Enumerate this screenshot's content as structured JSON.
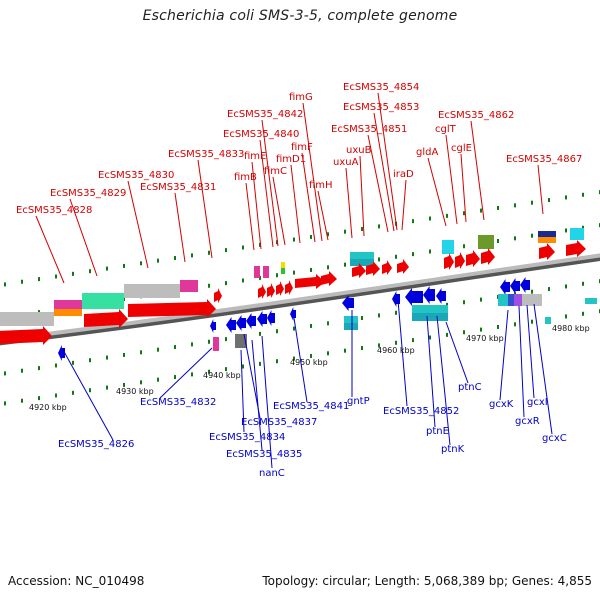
{
  "title": "Escherichia coli SMS-3-5, complete genome",
  "footer": {
    "accession": "Accession: NC_010498",
    "summary": "Topology: circular; Length: 5,068,389 bp; Genes: 4,855"
  },
  "colors": {
    "forward": "#ee0000",
    "reverse": "#0000dd",
    "top_label": "#d40000",
    "bottom_label": "#0000c8",
    "backbone": "#999999",
    "tick": "#117711"
  },
  "scale_labels": [
    "4920 kbp",
    "4930 kbp",
    "4940 kbp",
    "4950 kbp",
    "4960 kbp",
    "4970 kbp",
    "4980 kbp"
  ],
  "top_genes": [
    "EcSMS35_4828",
    "EcSMS35_4829",
    "EcSMS35_4830",
    "EcSMS35_4831",
    "EcSMS35_4833",
    "fimB",
    "fimE",
    "EcSMS35_4840",
    "EcSMS35_4842",
    "fimC",
    "fimD1",
    "fimF",
    "fimG",
    "fimH",
    "uxuA",
    "uxuB",
    "EcSMS35_4851",
    "EcSMS35_4853",
    "EcSMS35_4854",
    "iraD",
    "gldA",
    "cglT",
    "cglE",
    "EcSMS35_4862",
    "EcSMS35_4867"
  ],
  "bottom_genes": [
    "EcSMS35_4826",
    "EcSMS35_4832",
    "EcSMS35_4834",
    "EcSMS35_4835",
    "EcSMS35_4837",
    "nanC",
    "EcSMS35_4841",
    "gntP",
    "EcSMS35_4852",
    "ptnE",
    "ptnK",
    "ptnC",
    "gcxK",
    "gcxR",
    "gcxI",
    "gcxC"
  ]
}
